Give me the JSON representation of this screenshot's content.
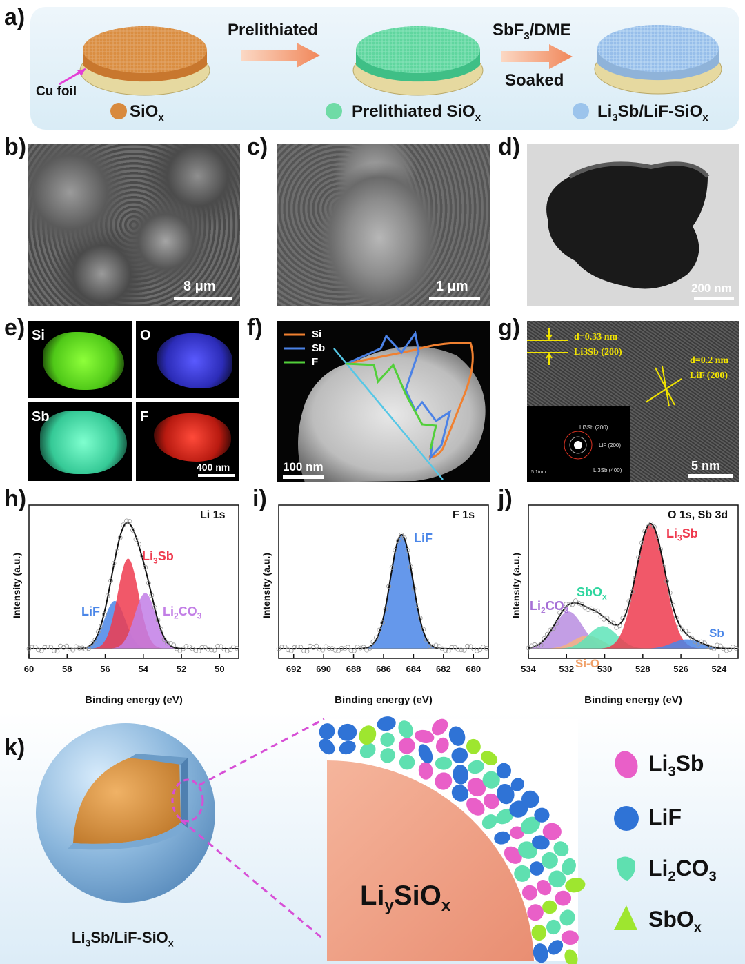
{
  "panel_a": {
    "label": "a)",
    "arrow1": "Prelithiated",
    "arrow2_top": "SbF3/DME",
    "arrow2_bottom": "Soaked",
    "cu_foil": "Cu foil",
    "legend": [
      "SiOx",
      "Prelithiated SiOx",
      "Li3Sb/LiF-SiOx"
    ]
  },
  "panel_b": {
    "label": "b)",
    "scale": "8 μm"
  },
  "panel_c": {
    "label": "c)",
    "scale": "1 μm"
  },
  "panel_d": {
    "label": "d)",
    "scale": "200 nm"
  },
  "panel_e": {
    "label": "e)",
    "maps": [
      "Si",
      "O",
      "Sb",
      "F"
    ],
    "scale": "400 nm"
  },
  "panel_f": {
    "label": "f)",
    "legend": [
      "Si",
      "Sb",
      "F"
    ],
    "scale": "100 nm"
  },
  "panel_g": {
    "label": "g)",
    "d1": "d=0.33 nm",
    "d1_plane": "Li3Sb (200)",
    "d2": "d=0.2 nm",
    "d2_plane": "LiF (200)",
    "saed": [
      "Li3Sb (200)",
      "LiF (200)",
      "Li3Sb (400)"
    ],
    "saed_scale": "5 1/nm",
    "scale": "5 nm"
  },
  "chart_data": [
    {
      "type": "line",
      "panel": "h)",
      "title": "Li 1s",
      "xlabel": "Binding energy (eV)",
      "ylabel": "Intensity (a.u.)",
      "xlim": [
        60,
        49
      ],
      "xticks": [
        60,
        58,
        56,
        54,
        52,
        50
      ],
      "series": [
        {
          "name": "LiF",
          "center": 55.5,
          "height": 0.36,
          "color": "#4a86e8"
        },
        {
          "name": "Li3Sb",
          "center": 54.8,
          "height": 0.68,
          "color": "#ef3b4f"
        },
        {
          "name": "Li2CO3",
          "center": 53.9,
          "height": 0.42,
          "color": "#c27ee6"
        }
      ]
    },
    {
      "type": "line",
      "panel": "i)",
      "title": "F 1s",
      "xlabel": "Binding energy (eV)",
      "ylabel": "Intensity (a.u.)",
      "xlim": [
        693,
        679
      ],
      "xticks": [
        692,
        690,
        688,
        686,
        684,
        682,
        680
      ],
      "series": [
        {
          "name": "LiF",
          "center": 684.8,
          "height": 0.86,
          "color": "#4a86e8"
        }
      ]
    },
    {
      "type": "line",
      "panel": "j)",
      "title": "O 1s, Sb 3d",
      "xlabel": "Binding energy (eV)",
      "ylabel": "Intensity (a.u.)",
      "xlim": [
        534,
        523
      ],
      "xticks": [
        534,
        532,
        530,
        528,
        526,
        524
      ],
      "series": [
        {
          "name": "Li2CO3",
          "center": 531.9,
          "height": 0.28,
          "color": "#b98de0"
        },
        {
          "name": "Si-O",
          "center": 530.9,
          "height": 0.1,
          "color": "#f4b183"
        },
        {
          "name": "SbOx",
          "center": 530.1,
          "height": 0.17,
          "color": "#5ee4b8"
        },
        {
          "name": "Li3Sb",
          "center": 527.6,
          "height": 0.94,
          "color": "#ef3b4f"
        },
        {
          "name": "Sb",
          "center": 525.7,
          "height": 0.07,
          "color": "#4a86e8"
        }
      ]
    }
  ],
  "panel_k": {
    "label": "k)",
    "core_label": "LiySiOx",
    "particle_label": "Li3Sb/LiF-SiOx",
    "legend": [
      {
        "name": "Li3Sb",
        "color": "#e95fc8"
      },
      {
        "name": "LiF",
        "color": "#2f73d6"
      },
      {
        "name": "Li2CO3",
        "color": "#5fe0b0"
      },
      {
        "name": "SbOx",
        "color": "#9ee62f"
      }
    ]
  }
}
